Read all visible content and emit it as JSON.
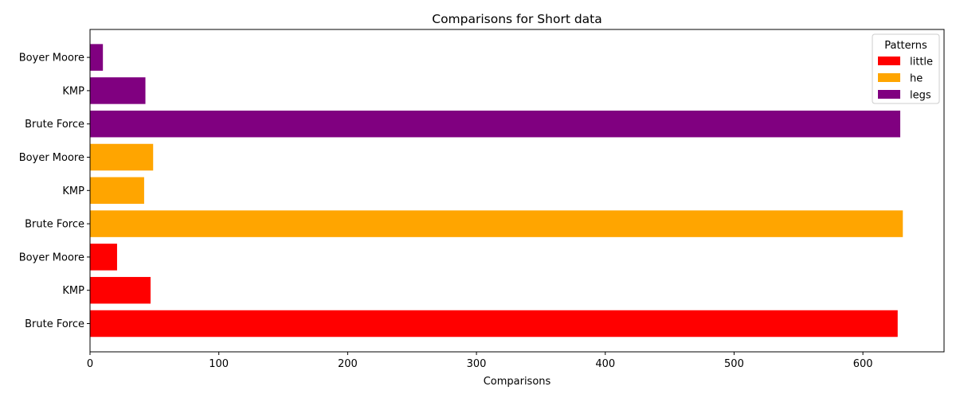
{
  "chart_data": {
    "type": "bar",
    "orientation": "horizontal",
    "title": "Comparisons for Short data",
    "xlabel": "Comparisons",
    "ylabel": "",
    "xlim": [
      0,
      663
    ],
    "xticks": [
      0,
      100,
      200,
      300,
      400,
      500,
      600
    ],
    "grid": false,
    "legend": {
      "title": "Patterns",
      "placement": "top-right",
      "entries": [
        {
          "name": "little",
          "color": "#ff0000"
        },
        {
          "name": "he",
          "color": "#ffa500"
        },
        {
          "name": "legs",
          "color": "#800080"
        }
      ]
    },
    "bars": [
      {
        "label": "Brute Force",
        "pattern": "little",
        "value": 627,
        "color": "#ff0000"
      },
      {
        "label": "KMP",
        "pattern": "little",
        "value": 47,
        "color": "#ff0000"
      },
      {
        "label": "Boyer Moore",
        "pattern": "little",
        "value": 21,
        "color": "#ff0000"
      },
      {
        "label": "Brute Force",
        "pattern": "he",
        "value": 631,
        "color": "#ffa500"
      },
      {
        "label": "KMP",
        "pattern": "he",
        "value": 42,
        "color": "#ffa500"
      },
      {
        "label": "Boyer Moore",
        "pattern": "he",
        "value": 49,
        "color": "#ffa500"
      },
      {
        "label": "Brute Force",
        "pattern": "legs",
        "value": 629,
        "color": "#800080"
      },
      {
        "label": "KMP",
        "pattern": "legs",
        "value": 43,
        "color": "#800080"
      },
      {
        "label": "Boyer Moore",
        "pattern": "legs",
        "value": 10,
        "color": "#800080"
      }
    ]
  }
}
